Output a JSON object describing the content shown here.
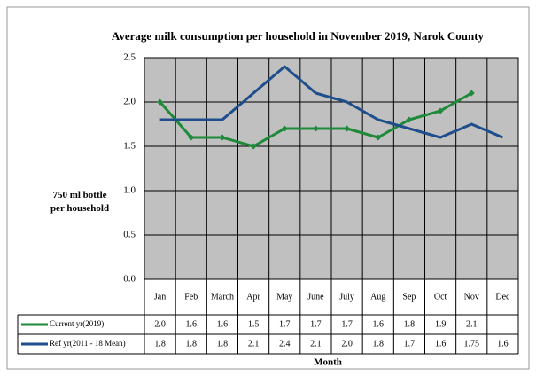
{
  "chart_data": {
    "type": "line",
    "title": "Average milk consumption per household  in November 2019, Narok County",
    "y_label": "750 ml bottle per household",
    "x_label": "Month",
    "categories": [
      "Jan",
      "Feb",
      "March",
      "Apr",
      "May",
      "June",
      "July",
      "Aug",
      "Sep",
      "Oct",
      "Nov",
      "Dec"
    ],
    "series": [
      {
        "name": "Current yr(2019)",
        "color": "#1e8a3a",
        "values": [
          2.0,
          1.6,
          1.6,
          1.5,
          1.7,
          1.7,
          1.7,
          1.6,
          1.8,
          1.9,
          2.1,
          null
        ],
        "value_labels": [
          "2.0",
          "1.6",
          "1.6",
          "1.5",
          "1.7",
          "1.7",
          "1.7",
          "1.6",
          "1.8",
          "1.9",
          "2.1",
          null
        ]
      },
      {
        "name": "Ref yr(2011 - 18 Mean)",
        "color": "#1f4e8c",
        "values": [
          1.8,
          1.8,
          1.8,
          2.1,
          2.4,
          2.1,
          2.0,
          1.8,
          1.7,
          1.6,
          1.75,
          1.6
        ],
        "value_labels": [
          "1.8",
          "1.8",
          "1.8",
          "2.1",
          "2.4",
          "2.1",
          "2.0",
          "1.8",
          "1.7",
          "1.6",
          "1.75",
          "1.6"
        ]
      }
    ],
    "ylim": [
      0,
      2.5
    ],
    "yticks": [
      {
        "value": 0,
        "label": "0.0"
      },
      0.5,
      {
        "value": 1,
        "label": "1.0"
      },
      1.5,
      {
        "value": 2,
        "label": "2.0"
      },
      2.5
    ],
    "grid": true,
    "plot_color": "#c0c0c0"
  }
}
